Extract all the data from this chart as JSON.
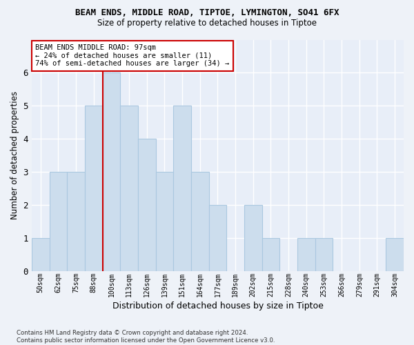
{
  "title": "BEAM ENDS, MIDDLE ROAD, TIPTOE, LYMINGTON, SO41 6FX",
  "subtitle": "Size of property relative to detached houses in Tiptoe",
  "xlabel": "Distribution of detached houses by size in Tiptoe",
  "ylabel": "Number of detached properties",
  "bar_color": "#ccdded",
  "bar_edge_color": "#aac8e0",
  "categories": [
    "50sqm",
    "62sqm",
    "75sqm",
    "88sqm",
    "100sqm",
    "113sqm",
    "126sqm",
    "139sqm",
    "151sqm",
    "164sqm",
    "177sqm",
    "189sqm",
    "202sqm",
    "215sqm",
    "228sqm",
    "240sqm",
    "253sqm",
    "266sqm",
    "279sqm",
    "291sqm",
    "304sqm"
  ],
  "values": [
    1,
    3,
    3,
    5,
    6,
    5,
    4,
    3,
    5,
    3,
    2,
    0,
    2,
    1,
    0,
    1,
    1,
    0,
    0,
    0,
    1
  ],
  "ylim": [
    0,
    7
  ],
  "yticks": [
    0,
    1,
    2,
    3,
    4,
    5,
    6,
    7
  ],
  "property_bin_index": 4,
  "annotation_text": "BEAM ENDS MIDDLE ROAD: 97sqm\n← 24% of detached houses are smaller (11)\n74% of semi-detached houses are larger (34) →",
  "redline_color": "#cc0000",
  "annotation_box_color": "#ffffff",
  "annotation_box_edge": "#cc0000",
  "footnote": "Contains HM Land Registry data © Crown copyright and database right 2024.\nContains public sector information licensed under the Open Government Licence v3.0.",
  "background_color": "#eef2f8",
  "grid_color": "#ffffff",
  "axis_bg_color": "#e8eef8"
}
